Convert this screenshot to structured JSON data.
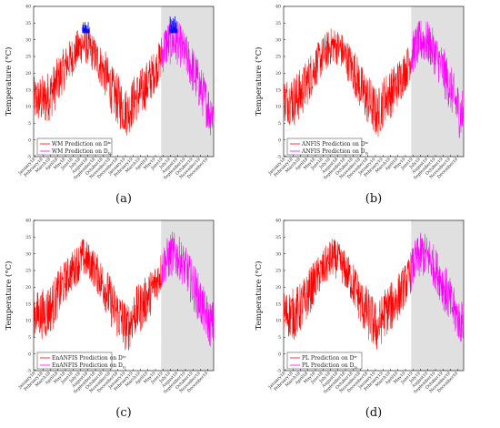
{
  "colors": {
    "train": "#ff0000",
    "test": "#ff00ff",
    "peak": "#0000ff",
    "shade": "#e0e0e0"
  },
  "chart_data": [
    {
      "type": "line",
      "panel_label": "(a)",
      "ylabel": "Temperature (°C)",
      "ylim": [
        -5,
        40
      ],
      "yticks": [
        "-5",
        "0",
        "5",
        "10",
        "15",
        "20",
        "25",
        "30",
        "35",
        "40"
      ],
      "xticks": [
        "January18",
        "February18",
        "March18",
        "April18",
        "May18",
        "June18",
        "July18",
        "August18",
        "September18",
        "October18",
        "November18",
        "December18",
        "January19",
        "February19",
        "March19",
        "April19",
        "May19",
        "June19",
        "July19",
        "August19",
        "September19",
        "October19",
        "November19",
        "December19"
      ],
      "shaded_region": [
        "June19",
        "December19"
      ],
      "legend": [
        {
          "label": "WM Prediction on D",
          "sup": "tr",
          "sub": "",
          "color": "#ff0000"
        },
        {
          "label": "WM Prediction on D",
          "sup": "",
          "sub": "ts",
          "color": "#ff00ff"
        }
      ],
      "envelope": {
        "months": [
          "Jan18",
          "Feb18",
          "Mar18",
          "Apr18",
          "May18",
          "Jun18",
          "Jul18",
          "Aug18",
          "Sep18",
          "Oct18",
          "Nov18",
          "Dec18",
          "Jan19",
          "Feb19",
          "Mar19",
          "Apr19",
          "May19",
          "Jun19",
          "Jul19",
          "Aug19",
          "Sep19",
          "Oct19",
          "Nov19",
          "Dec19"
        ],
        "high": [
          19,
          20,
          22,
          26,
          29,
          32,
          35,
          33,
          30,
          27,
          22,
          19,
          15,
          20,
          22,
          25,
          28,
          35,
          37,
          35,
          31,
          27,
          21,
          16
        ],
        "low": [
          5,
          4,
          7,
          12,
          17,
          20,
          23,
          22,
          18,
          13,
          7,
          3,
          1,
          5,
          7,
          11,
          16,
          21,
          23,
          22,
          18,
          12,
          7,
          1
        ]
      },
      "peak_highlight": true
    },
    {
      "type": "line",
      "panel_label": "(b)",
      "ylabel": "Temperature (°C)",
      "ylim": [
        -5,
        40
      ],
      "yticks": [
        "-5",
        "0",
        "5",
        "10",
        "15",
        "20",
        "25",
        "30",
        "35",
        "40"
      ],
      "xticks": [
        "January18",
        "February18",
        "March18",
        "April18",
        "May18",
        "June18",
        "July18",
        "August18",
        "September18",
        "October18",
        "November18",
        "December18",
        "January19",
        "February19",
        "March19",
        "April19",
        "May19",
        "June19",
        "July19",
        "August19",
        "September19",
        "October19",
        "November19",
        "December19"
      ],
      "shaded_region": [
        "June19",
        "December19"
      ],
      "legend": [
        {
          "label": "ANFIS Prediction on D",
          "sup": "tr",
          "sub": "",
          "color": "#ff0000"
        },
        {
          "label": "ANFIS Prediction on D",
          "sup": "",
          "sub": "ts",
          "color": "#ff00ff"
        }
      ],
      "envelope": {
        "months": [
          "Jan18",
          "Feb18",
          "Mar18",
          "Apr18",
          "May18",
          "Jun18",
          "Jul18",
          "Aug18",
          "Sep18",
          "Oct18",
          "Nov18",
          "Dec18",
          "Jan19",
          "Feb19",
          "Mar19",
          "Apr19",
          "May19",
          "Jun19",
          "Jul19",
          "Aug19",
          "Sep19",
          "Oct19",
          "Nov19",
          "Dec19"
        ],
        "high": [
          19,
          20,
          22,
          26,
          29,
          32,
          34,
          33,
          30,
          27,
          22,
          19,
          15,
          20,
          22,
          25,
          28,
          34,
          37,
          35,
          31,
          27,
          21,
          16
        ],
        "low": [
          5,
          4,
          7,
          12,
          17,
          20,
          23,
          22,
          18,
          13,
          7,
          3,
          0,
          5,
          7,
          11,
          16,
          21,
          23,
          22,
          18,
          12,
          7,
          0
        ]
      },
      "peak_highlight": false
    },
    {
      "type": "line",
      "panel_label": "(c)",
      "ylabel": "Temperature (°C)",
      "ylim": [
        -5,
        40
      ],
      "yticks": [
        "-5",
        "0",
        "5",
        "10",
        "15",
        "20",
        "25",
        "30",
        "35",
        "40"
      ],
      "xticks": [
        "January18",
        "February18",
        "March18",
        "April18",
        "May18",
        "June18",
        "July18",
        "August18",
        "September18",
        "October18",
        "November18",
        "December18",
        "January19",
        "February19",
        "March19",
        "April19",
        "May19",
        "June19",
        "July19",
        "August19",
        "September19",
        "October19",
        "November19",
        "December19"
      ],
      "shaded_region": [
        "June19",
        "December19"
      ],
      "legend": [
        {
          "label": "EnANFIS Prediction on D",
          "sup": "tr",
          "sub": "",
          "color": "#ff0000"
        },
        {
          "label": "EnANFIS Prediction on D",
          "sup": "",
          "sub": "ts",
          "color": "#ff00ff"
        }
      ],
      "envelope": {
        "months": [
          "Jan18",
          "Feb18",
          "Mar18",
          "Apr18",
          "May18",
          "Jun18",
          "Jul18",
          "Aug18",
          "Sep18",
          "Oct18",
          "Nov18",
          "Dec18",
          "Jan19",
          "Feb19",
          "Mar19",
          "Apr19",
          "May19",
          "Jun19",
          "Jul19",
          "Aug19",
          "Sep19",
          "Oct19",
          "Nov19",
          "Dec19"
        ],
        "high": [
          19,
          20,
          22,
          26,
          29,
          32,
          35,
          33,
          30,
          27,
          22,
          19,
          15,
          20,
          22,
          25,
          28,
          34,
          37,
          35,
          31,
          27,
          21,
          16
        ],
        "low": [
          5,
          4,
          7,
          12,
          17,
          20,
          23,
          22,
          18,
          13,
          7,
          3,
          0,
          5,
          7,
          11,
          16,
          21,
          23,
          22,
          18,
          12,
          7,
          2
        ]
      },
      "peak_highlight": false
    },
    {
      "type": "line",
      "panel_label": "(d)",
      "ylabel": "Temperature (°C)",
      "ylim": [
        -5,
        40
      ],
      "yticks": [
        "-5",
        "0",
        "5",
        "10",
        "15",
        "20",
        "25",
        "30",
        "35",
        "40"
      ],
      "xticks": [
        "January18",
        "February18",
        "March18",
        "April18",
        "May18",
        "June18",
        "July18",
        "August18",
        "September18",
        "October18",
        "November18",
        "December18",
        "January19",
        "February19",
        "March19",
        "April19",
        "May19",
        "June19",
        "July19",
        "August19",
        "September19",
        "October19",
        "November19",
        "December19"
      ],
      "shaded_region": [
        "June19",
        "December19"
      ],
      "legend": [
        {
          "label": "PL Prediction on D",
          "sup": "tr",
          "sub": "",
          "color": "#ff0000"
        },
        {
          "label": "PL Prediction on D",
          "sup": "",
          "sub": "ts",
          "color": "#ff00ff"
        }
      ],
      "envelope": {
        "months": [
          "Jan18",
          "Feb18",
          "Mar18",
          "Apr18",
          "May18",
          "Jun18",
          "Jul18",
          "Aug18",
          "Sep18",
          "Oct18",
          "Nov18",
          "Dec18",
          "Jan19",
          "Feb19",
          "Mar19",
          "Apr19",
          "May19",
          "Jun19",
          "Jul19",
          "Aug19",
          "Sep19",
          "Oct19",
          "Nov19",
          "Dec19"
        ],
        "high": [
          19,
          20,
          22,
          26,
          29,
          32,
          35,
          33,
          30,
          27,
          22,
          19,
          15,
          20,
          22,
          25,
          28,
          34,
          37,
          35,
          31,
          27,
          21,
          16
        ],
        "low": [
          5,
          4,
          7,
          12,
          17,
          20,
          23,
          22,
          18,
          13,
          7,
          3,
          0,
          5,
          7,
          11,
          16,
          21,
          23,
          22,
          18,
          12,
          7,
          3
        ]
      },
      "peak_highlight": false
    }
  ]
}
